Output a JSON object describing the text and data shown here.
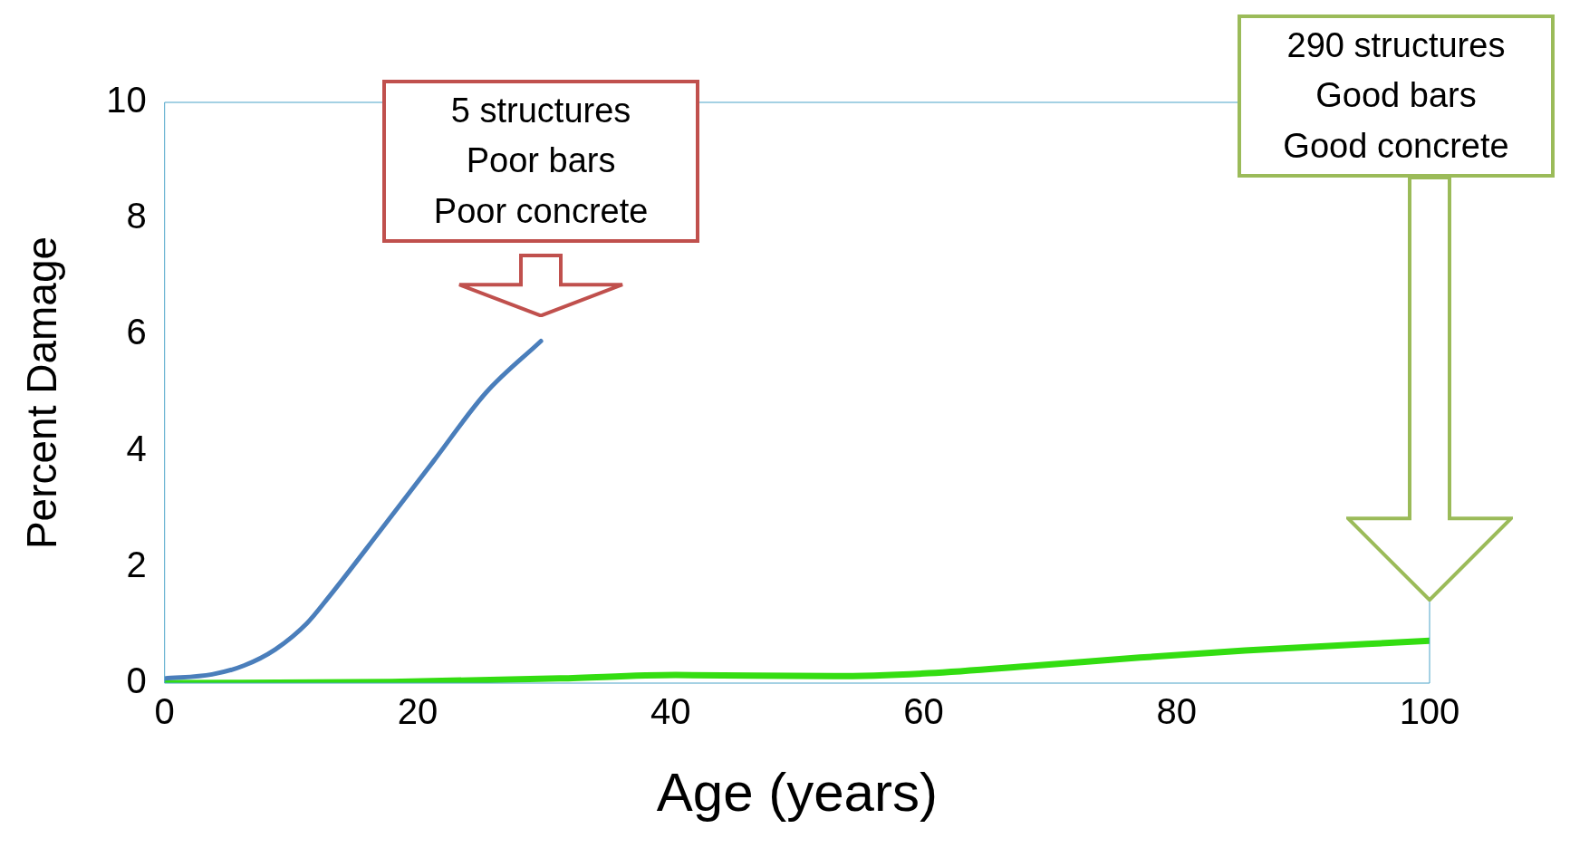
{
  "chart_data": {
    "type": "line",
    "xlabel": "Age (years)",
    "ylabel": "Percent Damage",
    "xlim": [
      0,
      100
    ],
    "xticks": [
      0,
      20,
      40,
      60,
      80,
      100
    ],
    "ylim": [
      0,
      10
    ],
    "yticks": [
      0,
      2,
      4,
      6,
      8,
      10
    ],
    "grid": false,
    "legend": false,
    "marker": "none",
    "line_style": "solid",
    "series": [
      {
        "color": "#4a7ebb",
        "x": [
          0,
          3.75,
          6.25,
          8.75,
          11.25,
          12.9,
          17.1,
          21.25,
          25.4,
          29.75
        ],
        "values": [
          0.08,
          0.15,
          0.3,
          0.58,
          1.03,
          1.46,
          2.64,
          3.82,
          5.0,
          5.89
        ]
      },
      {
        "color": "#33dd11",
        "x": [
          0,
          17.9,
          31.25,
          40.4,
          52.9,
          60.4,
          68.75,
          77.1,
          85.4,
          100
        ],
        "values": [
          0,
          0.02,
          0.08,
          0.14,
          0.12,
          0.17,
          0.3,
          0.44,
          0.56,
          0.73
        ]
      }
    ],
    "annotations": [
      "5 structures\nPoor bars\nPoor concrete",
      "290 structures\nGood bars\nGood concrete"
    ]
  }
}
